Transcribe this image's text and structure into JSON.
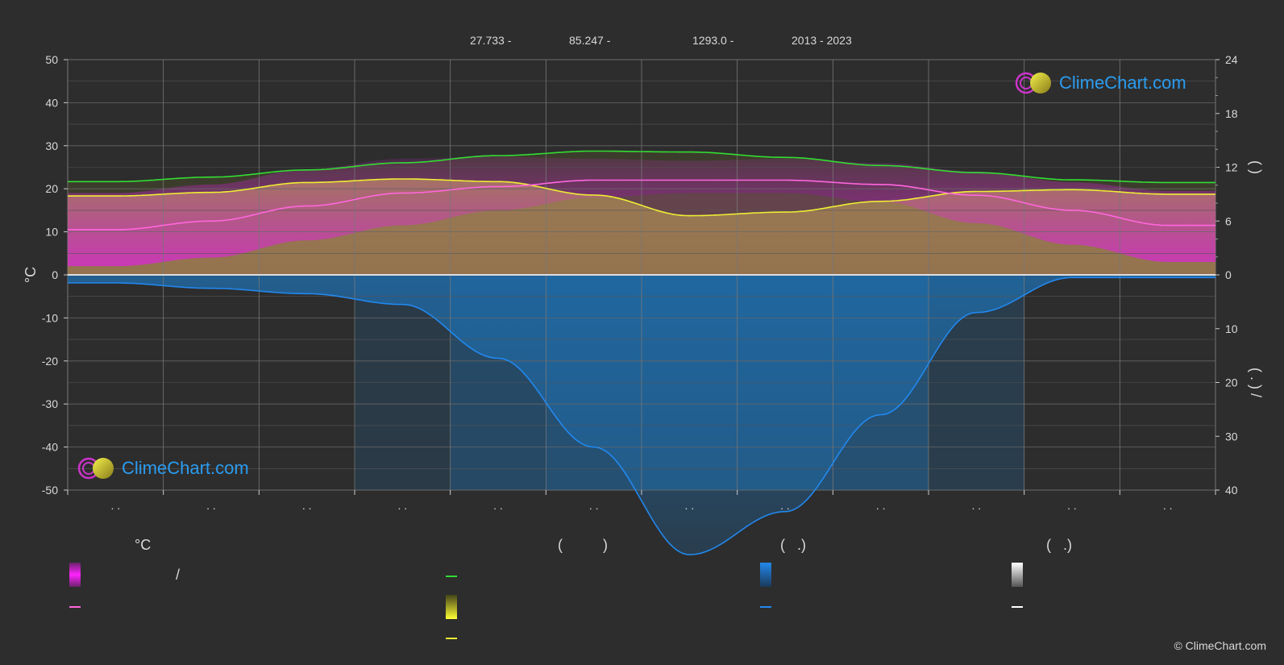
{
  "header": {
    "lat": "27.733 -",
    "lon": "85.247 -",
    "elev": "1293.0 -",
    "years": "2013 - 2023"
  },
  "brand": {
    "name": "ClimeChart.com",
    "copyright": "© ClimeChart.com"
  },
  "colors": {
    "bg": "#2d2d2d",
    "grid": "#5a5a5a",
    "green": "#33dd33",
    "pink": "#ff66dd",
    "yellow": "#eeee33",
    "blue": "#2288ee",
    "magenta": "#dd22dd",
    "olive": "#8c8c33",
    "rosefill": "#c0609a",
    "rain": "#1f6fb0"
  },
  "legend": {
    "temp_unit": "°C",
    "sun_header": "(          )",
    "rain_header": "(   .)",
    "snow_header": "(   .)",
    "slash": "/"
  },
  "chart_data": {
    "type": "area",
    "x": [
      1,
      2,
      3,
      4,
      5,
      6,
      7,
      8,
      9,
      10,
      11,
      12
    ],
    "xtick_labels": [
      ". .",
      ". .",
      ". .",
      ". .",
      ". .",
      ". .",
      ". .",
      ". .",
      ". .",
      ". .",
      ". .",
      ". ."
    ],
    "ylabel": "°C",
    "ylim": [
      -50,
      50
    ],
    "yticks": [
      50,
      40,
      30,
      20,
      10,
      0,
      -10,
      -20,
      -30,
      -40,
      -50
    ],
    "y2_top": {
      "ticks": [
        24,
        18,
        12,
        6,
        0
      ],
      "lim": [
        0,
        24
      ],
      "label": "(     )"
    },
    "y2_bottom": {
      "ticks": [
        0,
        10,
        20,
        30,
        40
      ],
      "lim": [
        0,
        40
      ],
      "label": "(  .   )  /"
    },
    "grid": true,
    "series": [
      {
        "key": "daylight",
        "color": "#33dd33",
        "unit": "h",
        "values": [
          10.4,
          10.9,
          11.7,
          12.5,
          13.3,
          13.8,
          13.7,
          13.1,
          12.2,
          11.4,
          10.6,
          10.3
        ]
      },
      {
        "key": "sunshine",
        "color": "#eeee33",
        "unit": "h",
        "values": [
          8.8,
          9.2,
          10.3,
          10.7,
          10.4,
          8.9,
          6.6,
          7.0,
          8.2,
          9.3,
          9.5,
          9.0
        ]
      },
      {
        "key": "temp_mean",
        "color": "#ff66dd",
        "unit": "°C",
        "values": [
          10.5,
          12.5,
          16.0,
          19.0,
          20.5,
          22.0,
          22.0,
          22.0,
          21.0,
          18.5,
          15.0,
          11.5
        ]
      },
      {
        "key": "temp_max",
        "color": "#dd22dd",
        "unit": "°C",
        "values": [
          19.0,
          21.0,
          24.5,
          27.0,
          27.5,
          27.0,
          26.5,
          27.0,
          26.0,
          24.0,
          21.5,
          19.5
        ]
      },
      {
        "key": "temp_min",
        "color": "#c0609a",
        "unit": "°C",
        "values": [
          2.0,
          4.0,
          8.0,
          11.5,
          15.0,
          18.0,
          19.0,
          19.0,
          17.0,
          12.0,
          7.0,
          3.0
        ]
      },
      {
        "key": "precip",
        "color": "#2288ee",
        "unit": "mm",
        "values": [
          1.5,
          2.5,
          3.5,
          5.5,
          15.5,
          32,
          52,
          44,
          26,
          7,
          0.5,
          0.5
        ]
      }
    ]
  }
}
